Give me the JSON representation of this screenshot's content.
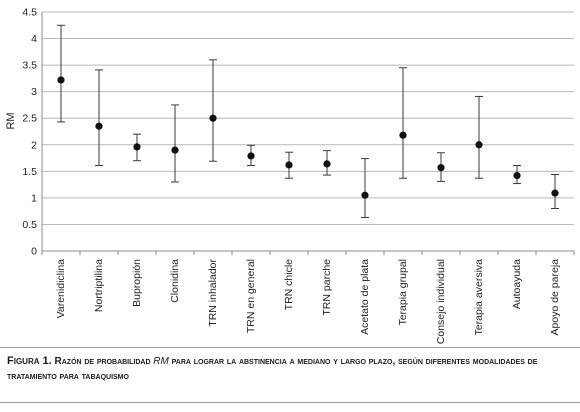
{
  "chart_data": {
    "type": "scatter",
    "title": "",
    "xlabel": "",
    "ylabel": "RM",
    "ylim": [
      0,
      4.5
    ],
    "yticks": [
      "0",
      "0.5",
      "1",
      "1.5",
      "2",
      "2.5",
      "3",
      "3.5",
      "4",
      "4.5"
    ],
    "grid": true,
    "categories": [
      "Varenidiclina",
      "Nortriptilina",
      "Bupropión",
      "Clonidina",
      "TRN inhalador",
      "TRN en general",
      "TRN chicle",
      "TRN parche",
      "Acetato de plata",
      "Terapia grupal",
      "Consejo individual",
      "Terapia aversiva",
      "Autoayuda",
      "Apoyo de pareja"
    ],
    "series": [
      {
        "values": [
          3.22,
          2.35,
          1.96,
          1.9,
          2.5,
          1.79,
          1.62,
          1.64,
          1.05,
          2.18,
          1.57,
          2.0,
          1.42,
          1.09
        ],
        "lower": [
          2.43,
          1.61,
          1.7,
          1.3,
          1.69,
          1.61,
          1.37,
          1.43,
          0.63,
          1.37,
          1.31,
          1.37,
          1.27,
          0.8
        ],
        "upper": [
          4.25,
          3.41,
          2.2,
          2.75,
          3.6,
          1.99,
          1.86,
          1.89,
          1.74,
          3.45,
          1.85,
          2.91,
          1.61,
          1.44
        ]
      }
    ]
  },
  "caption": {
    "lead": "Figura 1.",
    "text_before": " Razón de probabilidad ",
    "rm": "RM",
    "text_after": " para lograr la abstinencia a mediano y largo plazo, según diferentes modalidades de tratamiento para tabaquismo"
  },
  "colors": {
    "point": "#111111",
    "errorbar": "#3a3a3a",
    "grid": "#b8b8b8",
    "axis": "#8c8c8c"
  }
}
